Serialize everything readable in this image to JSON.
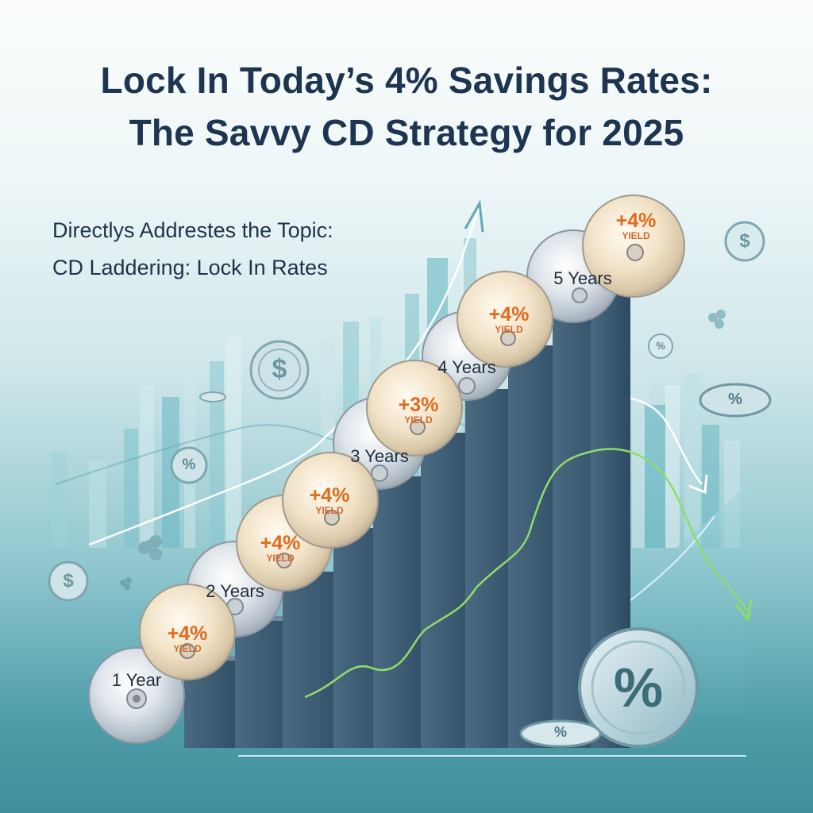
{
  "title": {
    "line1": "Lock In Today’s 4% Savings Rates:",
    "line2": "The Savvy CD Strategy for 2025"
  },
  "subtitle": {
    "line1": "Directlys Addrestes the Topic:",
    "line2": "CD Laddering: Lock In Rates"
  },
  "ladder": {
    "terms": [
      "1 Year",
      "2 Years",
      "3 Years",
      "4 Years",
      "5 Years"
    ],
    "yields": [
      {
        "pct": "+4%",
        "word": "YIELD"
      },
      {
        "pct": "+4%",
        "word": "YIELD"
      },
      {
        "pct": "+4%",
        "word": "YIELD"
      },
      {
        "pct": "+3%",
        "word": "YIELD"
      },
      {
        "pct": "+4%",
        "word": "YIELD"
      },
      {
        "pct": "+4%",
        "word": "YIELD"
      }
    ]
  },
  "coins": {
    "dollar": "$",
    "percent": "%"
  },
  "colors": {
    "title": "#1d3550",
    "yield_orange": "#e06a1e",
    "step_dark": "#2f4f66",
    "trend_green": "#8fdc6a",
    "trend_white": "#ffffff"
  },
  "icons": [
    "dollar-coin-icon",
    "percent-coin-icon",
    "cd-disc-icon",
    "trend-arrow-icon"
  ]
}
